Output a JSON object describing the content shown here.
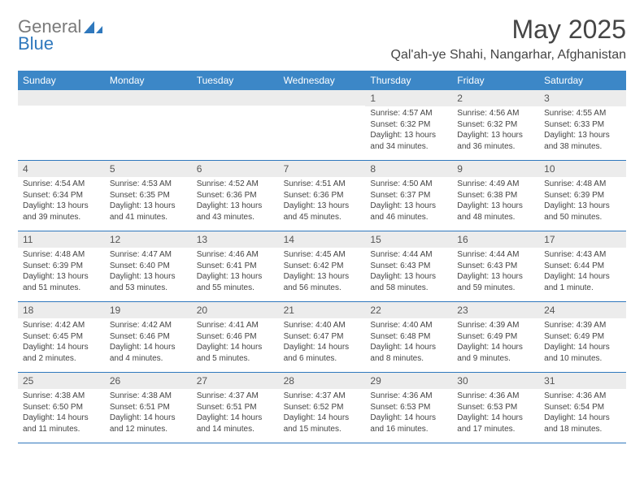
{
  "logo": {
    "word1": "General",
    "word2": "Blue"
  },
  "title": "May 2025",
  "location": "Qal'ah-ye Shahi, Nangarhar, Afghanistan",
  "colors": {
    "header_bg": "#3c87c7",
    "header_text": "#ffffff",
    "daynum_bg": "#ececec",
    "text": "#444444",
    "rule": "#2f78bd",
    "logo_gray": "#7a7a7a",
    "logo_blue": "#2f78bd"
  },
  "weekdays": [
    "Sunday",
    "Monday",
    "Tuesday",
    "Wednesday",
    "Thursday",
    "Friday",
    "Saturday"
  ],
  "weeks": [
    [
      {
        "empty": true
      },
      {
        "empty": true
      },
      {
        "empty": true
      },
      {
        "empty": true
      },
      {
        "day": "1",
        "sunrise": "Sunrise: 4:57 AM",
        "sunset": "Sunset: 6:32 PM",
        "daylight1": "Daylight: 13 hours",
        "daylight2": "and 34 minutes."
      },
      {
        "day": "2",
        "sunrise": "Sunrise: 4:56 AM",
        "sunset": "Sunset: 6:32 PM",
        "daylight1": "Daylight: 13 hours",
        "daylight2": "and 36 minutes."
      },
      {
        "day": "3",
        "sunrise": "Sunrise: 4:55 AM",
        "sunset": "Sunset: 6:33 PM",
        "daylight1": "Daylight: 13 hours",
        "daylight2": "and 38 minutes."
      }
    ],
    [
      {
        "day": "4",
        "sunrise": "Sunrise: 4:54 AM",
        "sunset": "Sunset: 6:34 PM",
        "daylight1": "Daylight: 13 hours",
        "daylight2": "and 39 minutes."
      },
      {
        "day": "5",
        "sunrise": "Sunrise: 4:53 AM",
        "sunset": "Sunset: 6:35 PM",
        "daylight1": "Daylight: 13 hours",
        "daylight2": "and 41 minutes."
      },
      {
        "day": "6",
        "sunrise": "Sunrise: 4:52 AM",
        "sunset": "Sunset: 6:36 PM",
        "daylight1": "Daylight: 13 hours",
        "daylight2": "and 43 minutes."
      },
      {
        "day": "7",
        "sunrise": "Sunrise: 4:51 AM",
        "sunset": "Sunset: 6:36 PM",
        "daylight1": "Daylight: 13 hours",
        "daylight2": "and 45 minutes."
      },
      {
        "day": "8",
        "sunrise": "Sunrise: 4:50 AM",
        "sunset": "Sunset: 6:37 PM",
        "daylight1": "Daylight: 13 hours",
        "daylight2": "and 46 minutes."
      },
      {
        "day": "9",
        "sunrise": "Sunrise: 4:49 AM",
        "sunset": "Sunset: 6:38 PM",
        "daylight1": "Daylight: 13 hours",
        "daylight2": "and 48 minutes."
      },
      {
        "day": "10",
        "sunrise": "Sunrise: 4:48 AM",
        "sunset": "Sunset: 6:39 PM",
        "daylight1": "Daylight: 13 hours",
        "daylight2": "and 50 minutes."
      }
    ],
    [
      {
        "day": "11",
        "sunrise": "Sunrise: 4:48 AM",
        "sunset": "Sunset: 6:39 PM",
        "daylight1": "Daylight: 13 hours",
        "daylight2": "and 51 minutes."
      },
      {
        "day": "12",
        "sunrise": "Sunrise: 4:47 AM",
        "sunset": "Sunset: 6:40 PM",
        "daylight1": "Daylight: 13 hours",
        "daylight2": "and 53 minutes."
      },
      {
        "day": "13",
        "sunrise": "Sunrise: 4:46 AM",
        "sunset": "Sunset: 6:41 PM",
        "daylight1": "Daylight: 13 hours",
        "daylight2": "and 55 minutes."
      },
      {
        "day": "14",
        "sunrise": "Sunrise: 4:45 AM",
        "sunset": "Sunset: 6:42 PM",
        "daylight1": "Daylight: 13 hours",
        "daylight2": "and 56 minutes."
      },
      {
        "day": "15",
        "sunrise": "Sunrise: 4:44 AM",
        "sunset": "Sunset: 6:43 PM",
        "daylight1": "Daylight: 13 hours",
        "daylight2": "and 58 minutes."
      },
      {
        "day": "16",
        "sunrise": "Sunrise: 4:44 AM",
        "sunset": "Sunset: 6:43 PM",
        "daylight1": "Daylight: 13 hours",
        "daylight2": "and 59 minutes."
      },
      {
        "day": "17",
        "sunrise": "Sunrise: 4:43 AM",
        "sunset": "Sunset: 6:44 PM",
        "daylight1": "Daylight: 14 hours",
        "daylight2": "and 1 minute."
      }
    ],
    [
      {
        "day": "18",
        "sunrise": "Sunrise: 4:42 AM",
        "sunset": "Sunset: 6:45 PM",
        "daylight1": "Daylight: 14 hours",
        "daylight2": "and 2 minutes."
      },
      {
        "day": "19",
        "sunrise": "Sunrise: 4:42 AM",
        "sunset": "Sunset: 6:46 PM",
        "daylight1": "Daylight: 14 hours",
        "daylight2": "and 4 minutes."
      },
      {
        "day": "20",
        "sunrise": "Sunrise: 4:41 AM",
        "sunset": "Sunset: 6:46 PM",
        "daylight1": "Daylight: 14 hours",
        "daylight2": "and 5 minutes."
      },
      {
        "day": "21",
        "sunrise": "Sunrise: 4:40 AM",
        "sunset": "Sunset: 6:47 PM",
        "daylight1": "Daylight: 14 hours",
        "daylight2": "and 6 minutes."
      },
      {
        "day": "22",
        "sunrise": "Sunrise: 4:40 AM",
        "sunset": "Sunset: 6:48 PM",
        "daylight1": "Daylight: 14 hours",
        "daylight2": "and 8 minutes."
      },
      {
        "day": "23",
        "sunrise": "Sunrise: 4:39 AM",
        "sunset": "Sunset: 6:49 PM",
        "daylight1": "Daylight: 14 hours",
        "daylight2": "and 9 minutes."
      },
      {
        "day": "24",
        "sunrise": "Sunrise: 4:39 AM",
        "sunset": "Sunset: 6:49 PM",
        "daylight1": "Daylight: 14 hours",
        "daylight2": "and 10 minutes."
      }
    ],
    [
      {
        "day": "25",
        "sunrise": "Sunrise: 4:38 AM",
        "sunset": "Sunset: 6:50 PM",
        "daylight1": "Daylight: 14 hours",
        "daylight2": "and 11 minutes."
      },
      {
        "day": "26",
        "sunrise": "Sunrise: 4:38 AM",
        "sunset": "Sunset: 6:51 PM",
        "daylight1": "Daylight: 14 hours",
        "daylight2": "and 12 minutes."
      },
      {
        "day": "27",
        "sunrise": "Sunrise: 4:37 AM",
        "sunset": "Sunset: 6:51 PM",
        "daylight1": "Daylight: 14 hours",
        "daylight2": "and 14 minutes."
      },
      {
        "day": "28",
        "sunrise": "Sunrise: 4:37 AM",
        "sunset": "Sunset: 6:52 PM",
        "daylight1": "Daylight: 14 hours",
        "daylight2": "and 15 minutes."
      },
      {
        "day": "29",
        "sunrise": "Sunrise: 4:36 AM",
        "sunset": "Sunset: 6:53 PM",
        "daylight1": "Daylight: 14 hours",
        "daylight2": "and 16 minutes."
      },
      {
        "day": "30",
        "sunrise": "Sunrise: 4:36 AM",
        "sunset": "Sunset: 6:53 PM",
        "daylight1": "Daylight: 14 hours",
        "daylight2": "and 17 minutes."
      },
      {
        "day": "31",
        "sunrise": "Sunrise: 4:36 AM",
        "sunset": "Sunset: 6:54 PM",
        "daylight1": "Daylight: 14 hours",
        "daylight2": "and 18 minutes."
      }
    ]
  ]
}
